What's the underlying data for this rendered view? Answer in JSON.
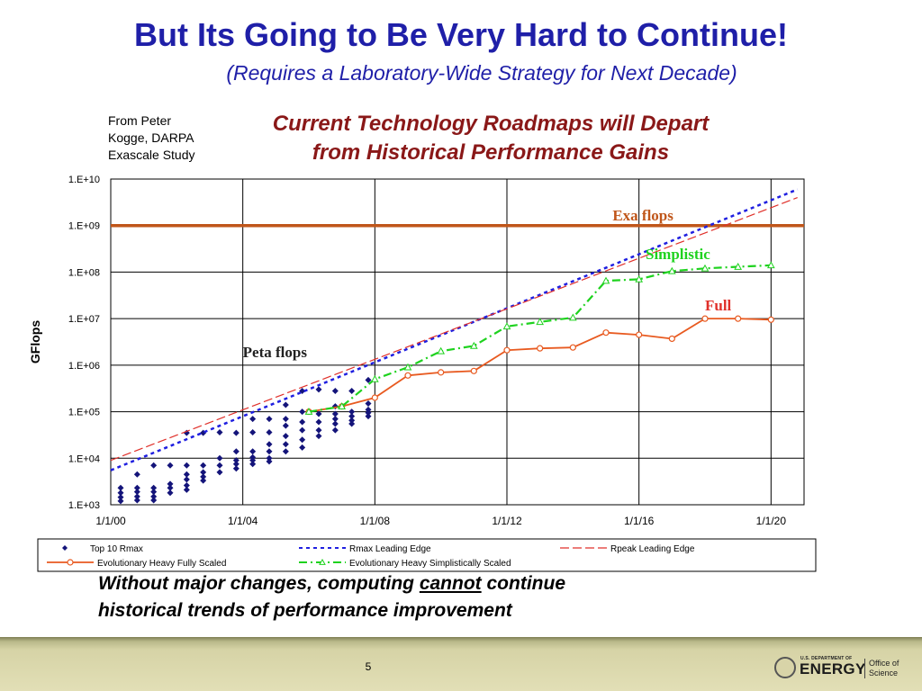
{
  "slide": {
    "title": "But Its Going to Be Very Hard to Continue!",
    "subtitle": "(Requires a Laboratory-Wide Strategy for Next Decade)",
    "source_line1": "From Peter",
    "source_line2": "Kogge, DARPA",
    "source_line3": "Exascale Study",
    "chart_heading_line1": "Current Technology Roadmaps will Depart",
    "chart_heading_line2": "from Historical Performance Gains",
    "conclusion_part1": "Without major changes, computing ",
    "conclusion_emph": "cannot",
    "conclusion_part2": " continue",
    "conclusion_line2": "historical trends of performance improvement",
    "page_number": "5",
    "footer_logo_small": "U.S. DEPARTMENT OF",
    "footer_logo_main": "ENERGY",
    "footer_office_line1": "Office of",
    "footer_office_line2": "Science"
  },
  "colors": {
    "title": "#1f1fa8",
    "chart_heading": "#8a1818",
    "exa_line": "#c0561a",
    "top10": "#14147a",
    "rmax": "#1f1fe0",
    "rpeak": "#e0302a",
    "fully": "#e85a20",
    "simplistic": "#1ed21e"
  },
  "chart_data": {
    "type": "scatter",
    "ylabel": "GFlops",
    "xlabel": "",
    "log_y": true,
    "ylim": [
      1000,
      10000000000
    ],
    "xlim": [
      2000,
      2021
    ],
    "grid": true,
    "legend_position": "bottom",
    "y_ticks": [
      {
        "value": 1000,
        "label": "1.E+03"
      },
      {
        "value": 10000,
        "label": "1.E+04"
      },
      {
        "value": 100000,
        "label": "1.E+05"
      },
      {
        "value": 1000000,
        "label": "1.E+06"
      },
      {
        "value": 10000000,
        "label": "1.E+07"
      },
      {
        "value": 100000000,
        "label": "1.E+08"
      },
      {
        "value": 1000000000,
        "label": "1.E+09"
      },
      {
        "value": 10000000000,
        "label": "1.E+10"
      }
    ],
    "x_ticks": [
      {
        "value": 2000,
        "label": "1/1/00"
      },
      {
        "value": 2004,
        "label": "1/1/04"
      },
      {
        "value": 2008,
        "label": "1/1/08"
      },
      {
        "value": 2012,
        "label": "1/1/12"
      },
      {
        "value": 2016,
        "label": "1/1/16"
      },
      {
        "value": 2020,
        "label": "1/1/20"
      }
    ],
    "annotations": [
      {
        "text": "Exa flops",
        "x": 2015.2,
        "y": 1300000000,
        "color": "#c0561a"
      },
      {
        "text": "Simplistic",
        "x": 2016.2,
        "y": 190000000,
        "color": "#1ed21e"
      },
      {
        "text": "Full",
        "x": 2018.0,
        "y": 15000000,
        "color": "#e0302a"
      },
      {
        "text": "Peta flops",
        "x": 2004.0,
        "y": 1500000,
        "color": "#222222"
      }
    ],
    "reference_lines": [
      {
        "name": "Exa flops",
        "y": 1000000000,
        "color": "#c0561a"
      }
    ],
    "series": [
      {
        "name": "Top 10 Rmax",
        "style": "diamond",
        "color": "#14147a",
        "points": [
          [
            2000.3,
            2300
          ],
          [
            2000.3,
            1800
          ],
          [
            2000.3,
            1450
          ],
          [
            2000.3,
            1200
          ],
          [
            2000.8,
            2300
          ],
          [
            2000.8,
            1900
          ],
          [
            2000.8,
            1500
          ],
          [
            2000.8,
            1250
          ],
          [
            2000.8,
            4500
          ],
          [
            2001.3,
            2300
          ],
          [
            2001.3,
            1900
          ],
          [
            2001.3,
            1500
          ],
          [
            2001.3,
            1250
          ],
          [
            2001.3,
            7000
          ],
          [
            2001.8,
            2800
          ],
          [
            2001.8,
            2300
          ],
          [
            2001.8,
            1800
          ],
          [
            2001.8,
            7000
          ],
          [
            2002.3,
            4500
          ],
          [
            2002.3,
            3500
          ],
          [
            2002.3,
            2600
          ],
          [
            2002.3,
            2100
          ],
          [
            2002.3,
            7000
          ],
          [
            2002.3,
            35000
          ],
          [
            2002.8,
            7000
          ],
          [
            2002.8,
            5000
          ],
          [
            2002.8,
            4000
          ],
          [
            2002.8,
            3300
          ],
          [
            2002.8,
            35000
          ],
          [
            2003.3,
            10000
          ],
          [
            2003.3,
            7000
          ],
          [
            2003.3,
            5000
          ],
          [
            2003.3,
            36000
          ],
          [
            2003.8,
            14000
          ],
          [
            2003.8,
            9000
          ],
          [
            2003.8,
            7500
          ],
          [
            2003.8,
            6000
          ],
          [
            2003.8,
            35000
          ],
          [
            2004.3,
            14000
          ],
          [
            2004.3,
            10500
          ],
          [
            2004.3,
            9000
          ],
          [
            2004.3,
            7500
          ],
          [
            2004.3,
            36000
          ],
          [
            2004.3,
            70000
          ],
          [
            2004.8,
            20000
          ],
          [
            2004.8,
            14000
          ],
          [
            2004.8,
            10000
          ],
          [
            2004.8,
            8500
          ],
          [
            2004.8,
            36000
          ],
          [
            2004.8,
            70000
          ],
          [
            2005.3,
            50000
          ],
          [
            2005.3,
            30000
          ],
          [
            2005.3,
            20000
          ],
          [
            2005.3,
            14000
          ],
          [
            2005.3,
            70000
          ],
          [
            2005.3,
            140000
          ],
          [
            2005.8,
            60000
          ],
          [
            2005.8,
            40000
          ],
          [
            2005.8,
            25000
          ],
          [
            2005.8,
            17000
          ],
          [
            2005.8,
            100000
          ],
          [
            2005.8,
            280000
          ],
          [
            2006.3,
            90000
          ],
          [
            2006.3,
            60000
          ],
          [
            2006.3,
            40000
          ],
          [
            2006.3,
            30000
          ],
          [
            2006.3,
            300000
          ],
          [
            2006.8,
            90000
          ],
          [
            2006.8,
            70000
          ],
          [
            2006.8,
            55000
          ],
          [
            2006.8,
            40000
          ],
          [
            2006.8,
            130000
          ],
          [
            2006.8,
            280000
          ],
          [
            2007.3,
            100000
          ],
          [
            2007.3,
            80000
          ],
          [
            2007.3,
            65000
          ],
          [
            2007.3,
            55000
          ],
          [
            2007.3,
            280000
          ],
          [
            2007.8,
            150000
          ],
          [
            2007.8,
            110000
          ],
          [
            2007.8,
            95000
          ],
          [
            2007.8,
            80000
          ],
          [
            2007.8,
            480000
          ]
        ]
      },
      {
        "name": "Rmax Leading Edge",
        "style": "dotted",
        "color": "#1f1fe0",
        "points": [
          [
            2000,
            5500
          ],
          [
            2020.8,
            6000000000
          ]
        ]
      },
      {
        "name": "Rpeak Leading Edge",
        "style": "dashed",
        "color": "#e0302a",
        "points": [
          [
            2000,
            9000
          ],
          [
            2020.8,
            4000000000
          ]
        ]
      },
      {
        "name": "Evolutionary Heavy Fully Scaled",
        "style": "line-circle",
        "color": "#e85a20",
        "points": [
          [
            2006,
            100000
          ],
          [
            2007,
            130000
          ],
          [
            2008,
            200000
          ],
          [
            2009,
            600000
          ],
          [
            2010,
            700000
          ],
          [
            2011,
            750000
          ],
          [
            2012,
            2100000
          ],
          [
            2013,
            2300000
          ],
          [
            2014,
            2400000
          ],
          [
            2015,
            5000000
          ],
          [
            2016,
            4500000
          ],
          [
            2017,
            3700000
          ],
          [
            2018,
            10000000
          ],
          [
            2019,
            10000000
          ],
          [
            2020,
            9500000
          ]
        ]
      },
      {
        "name": "Evolutionary Heavy Simplistically Scaled",
        "style": "dashdot-triangle",
        "color": "#1ed21e",
        "points": [
          [
            2006,
            100000
          ],
          [
            2007,
            130000
          ],
          [
            2008,
            500000
          ],
          [
            2009,
            900000
          ],
          [
            2010,
            2000000
          ],
          [
            2011,
            2600000
          ],
          [
            2012,
            6800000
          ],
          [
            2013,
            8500000
          ],
          [
            2014,
            10500000
          ],
          [
            2015,
            65000000
          ],
          [
            2016,
            70000000
          ],
          [
            2017,
            105000000
          ],
          [
            2018,
            120000000
          ],
          [
            2019,
            130000000
          ],
          [
            2020,
            140000000
          ]
        ]
      }
    ]
  }
}
